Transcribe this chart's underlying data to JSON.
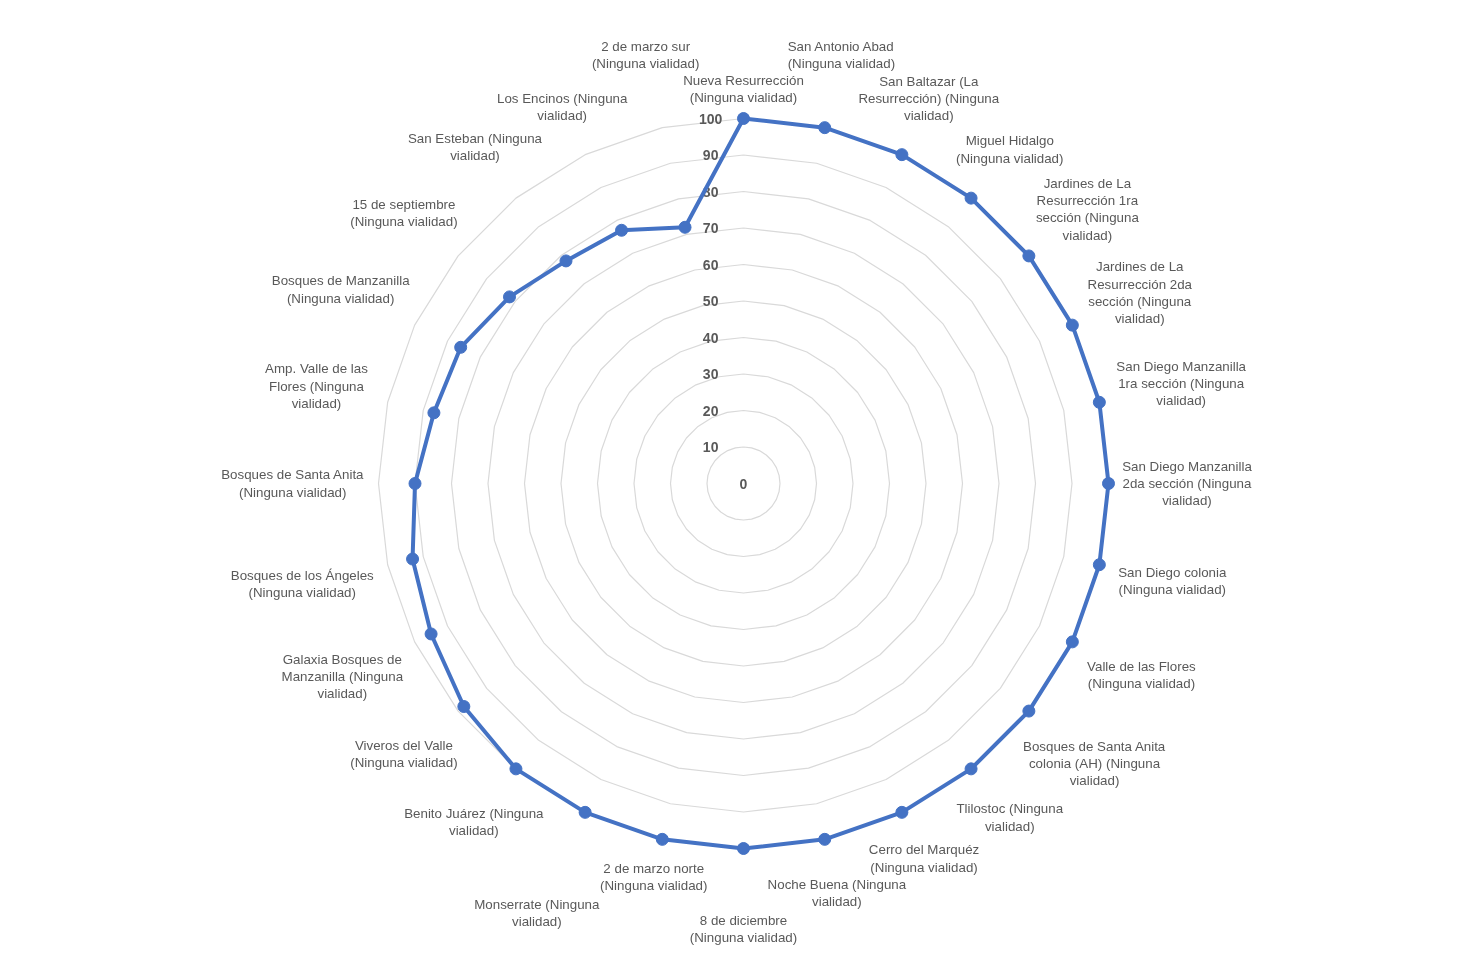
{
  "chart_data": {
    "type": "radar",
    "categories": [
      "Nueva Resurrección (Ninguna vialidad)",
      "San Antonio Abad (Ninguna vialidad)",
      "San Baltazar (La Resurrección) (Ninguna vialidad)",
      "Miguel Hidalgo (Ninguna vialidad)",
      "Jardines de La Resurrección 1ra sección (Ninguna vialidad)",
      "Jardines de La Resurrección 2da sección (Ninguna vialidad)",
      "San Diego Manzanilla 1ra sección (Ninguna vialidad)",
      "San Diego Manzanilla 2da sección (Ninguna vialidad)",
      "San Diego colonia (Ninguna vialidad)",
      "Valle de las Flores (Ninguna vialidad)",
      "Bosques de Santa Anita colonia (AH) (Ninguna vialidad)",
      "Tlilostoc (Ninguna vialidad)",
      "Cerro del Marquéz (Ninguna vialidad)",
      "Noche Buena (Ninguna vialidad)",
      "8 de diciembre (Ninguna vialidad)",
      "2 de marzo norte (Ninguna vialidad)",
      "Monserrate (Ninguna vialidad)",
      "Benito Juárez (Ninguna vialidad)",
      "Viveros del Valle (Ninguna vialidad)",
      "Galaxia Bosques de Manzanilla (Ninguna vialidad)",
      "Bosques de los Ángeles (Ninguna vialidad)",
      "Bosques de Santa Anita (Ninguna vialidad)",
      "Amp. Valle de las Flores (Ninguna vialidad)",
      "Bosques de Manzanilla (Ninguna vialidad)",
      "15 de septiembre (Ninguna vialidad)",
      "San Esteban (Ninguna vialidad)",
      "Los Encinos (Ninguna vialidad)",
      "2 de marzo sur (Ninguna vialidad)"
    ],
    "series": [
      {
        "color": "#4472c4",
        "values": [
          100,
          100,
          100,
          100,
          100,
          100,
          100,
          100,
          100,
          100,
          100,
          100,
          100,
          100,
          100,
          100,
          100,
          100,
          98,
          95,
          93,
          90,
          87,
          86,
          82,
          78,
          77,
          72
        ]
      }
    ],
    "ylim": [
      0,
      100
    ],
    "yticks": [
      0,
      10,
      20,
      30,
      40,
      50,
      60,
      70,
      80,
      90,
      100
    ],
    "grid": true,
    "marker": "circle",
    "line_style": "solid"
  }
}
